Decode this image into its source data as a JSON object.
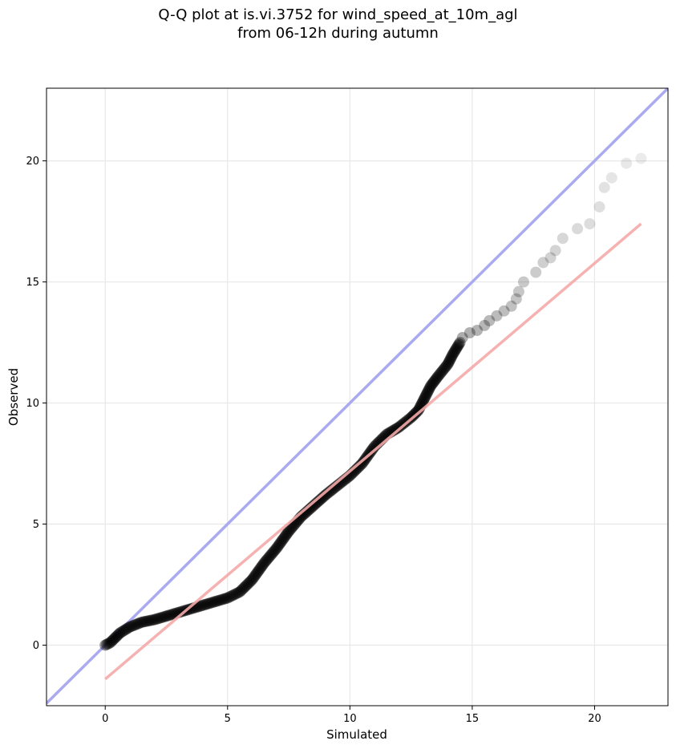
{
  "chart_data": {
    "type": "scatter",
    "title_line1": "Q-Q plot at is.vi.3752 for wind_speed_at_10m_agl",
    "title_line2": "from 06-12h during autumn",
    "xlabel": "Simulated",
    "ylabel": "Observed",
    "xlim": [
      -2.4,
      23.0
    ],
    "ylim": [
      -2.5,
      23.0
    ],
    "xticks": [
      0,
      5,
      10,
      15,
      20
    ],
    "yticks": [
      0,
      5,
      10,
      15,
      20
    ],
    "grid": true,
    "colors": {
      "points": "#000000",
      "one_to_one_line": "#aaaaf0",
      "fit_line": "#f5a9a9",
      "grid": "#e8e8e8"
    },
    "one_to_one_line": {
      "x": [
        -2.4,
        23.0
      ],
      "y": [
        -2.4,
        23.0
      ]
    },
    "fit_line": {
      "x": [
        0.0,
        21.9
      ],
      "y": [
        -1.4,
        17.4
      ]
    },
    "quantile_curve": {
      "x": [
        0.0,
        0.2,
        0.4,
        0.6,
        1.0,
        1.5,
        2.0,
        2.5,
        3.0,
        3.5,
        4.0,
        4.5,
        5.0,
        5.5,
        6.0,
        6.5,
        7.0,
        7.5,
        8.0,
        8.5,
        9.0,
        9.5,
        10.0,
        10.5,
        11.0,
        11.5,
        12.0,
        12.5,
        12.8,
        13.0,
        13.3,
        13.6,
        14.0,
        14.2,
        14.5
      ],
      "y": [
        0.0,
        0.1,
        0.3,
        0.5,
        0.75,
        0.95,
        1.05,
        1.2,
        1.35,
        1.5,
        1.65,
        1.8,
        1.95,
        2.2,
        2.7,
        3.4,
        4.0,
        4.7,
        5.3,
        5.75,
        6.2,
        6.6,
        7.0,
        7.5,
        8.2,
        8.7,
        9.0,
        9.4,
        9.7,
        10.1,
        10.7,
        11.1,
        11.6,
        12.0,
        12.5
      ]
    },
    "tail_points": [
      {
        "x": 14.6,
        "y": 12.7
      },
      {
        "x": 14.9,
        "y": 12.9
      },
      {
        "x": 15.2,
        "y": 13.0
      },
      {
        "x": 15.5,
        "y": 13.2
      },
      {
        "x": 15.7,
        "y": 13.4
      },
      {
        "x": 16.0,
        "y": 13.6
      },
      {
        "x": 16.3,
        "y": 13.8
      },
      {
        "x": 16.6,
        "y": 14.0
      },
      {
        "x": 16.8,
        "y": 14.3
      },
      {
        "x": 16.9,
        "y": 14.6
      },
      {
        "x": 17.1,
        "y": 15.0
      },
      {
        "x": 17.6,
        "y": 15.4
      },
      {
        "x": 17.9,
        "y": 15.8
      },
      {
        "x": 18.2,
        "y": 16.0
      },
      {
        "x": 18.4,
        "y": 16.3
      },
      {
        "x": 18.7,
        "y": 16.8
      },
      {
        "x": 19.3,
        "y": 17.2
      },
      {
        "x": 19.8,
        "y": 17.4
      },
      {
        "x": 20.2,
        "y": 18.1
      },
      {
        "x": 20.4,
        "y": 18.9
      },
      {
        "x": 20.7,
        "y": 19.3
      },
      {
        "x": 21.3,
        "y": 19.9
      },
      {
        "x": 21.9,
        "y": 20.1
      }
    ]
  }
}
